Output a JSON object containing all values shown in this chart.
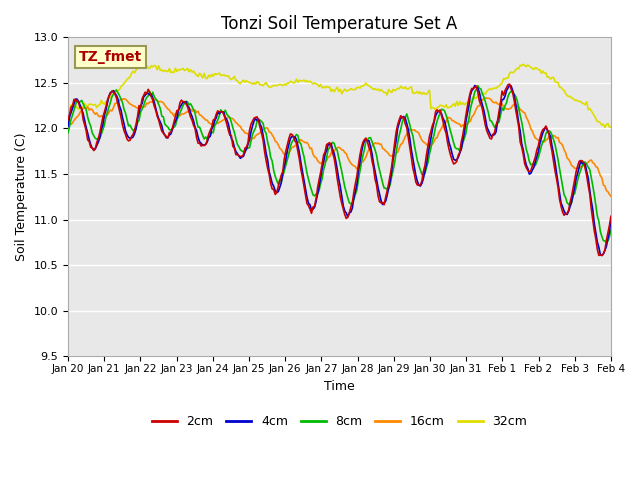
{
  "title": "Tonzi Soil Temperature Set A",
  "xlabel": "Time",
  "ylabel": "Soil Temperature (C)",
  "ylim": [
    9.5,
    13.0
  ],
  "annotation": "TZ_fmet",
  "series_labels": [
    "2cm",
    "4cm",
    "8cm",
    "16cm",
    "32cm"
  ],
  "series_colors": [
    "#cc0000",
    "#0000cc",
    "#00bb00",
    "#ff8800",
    "#dddd00"
  ],
  "x_tick_labels": [
    "Jan 20",
    "Jan 21",
    "Jan 22",
    "Jan 23",
    "Jan 24",
    "Jan 25",
    "Jan 26",
    "Jan 27",
    "Jan 28",
    "Jan 29",
    "Jan 30",
    "Jan 31",
    "Feb 1",
    "Feb 2",
    "Feb 3",
    "Feb 4"
  ],
  "background_color": "#ffffff",
  "plot_bg_color": "#e8e8e8",
  "grid_color": "#ffffff",
  "ylim_min": 9.5,
  "ylim_max": 13.0
}
